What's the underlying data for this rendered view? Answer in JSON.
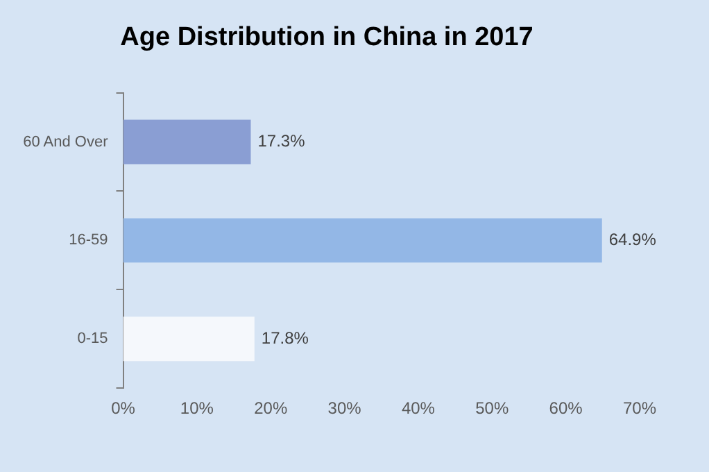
{
  "chart_data": {
    "type": "bar",
    "orientation": "horizontal",
    "title": "Age Distribution in China in 2017",
    "categories": [
      "60 And Over",
      "16-59",
      "0-15"
    ],
    "values": [
      17.3,
      64.9,
      17.8
    ],
    "colors": [
      "#8a9ed3",
      "#93b7e6",
      "#f5f8fc"
    ],
    "value_labels": [
      "17.3%",
      "64.9%",
      "17.8%"
    ],
    "xlim": [
      0,
      70
    ],
    "xticks": [
      {
        "value": 0,
        "label": "0%"
      },
      {
        "value": 10,
        "label": "10%"
      },
      {
        "value": 20,
        "label": "20%"
      },
      {
        "value": 30,
        "label": "30%"
      },
      {
        "value": 40,
        "label": "40%"
      },
      {
        "value": 50,
        "label": "50%"
      },
      {
        "value": 60,
        "label": "60%"
      },
      {
        "value": 70,
        "label": "70%"
      }
    ],
    "grid": false,
    "legend": false
  }
}
